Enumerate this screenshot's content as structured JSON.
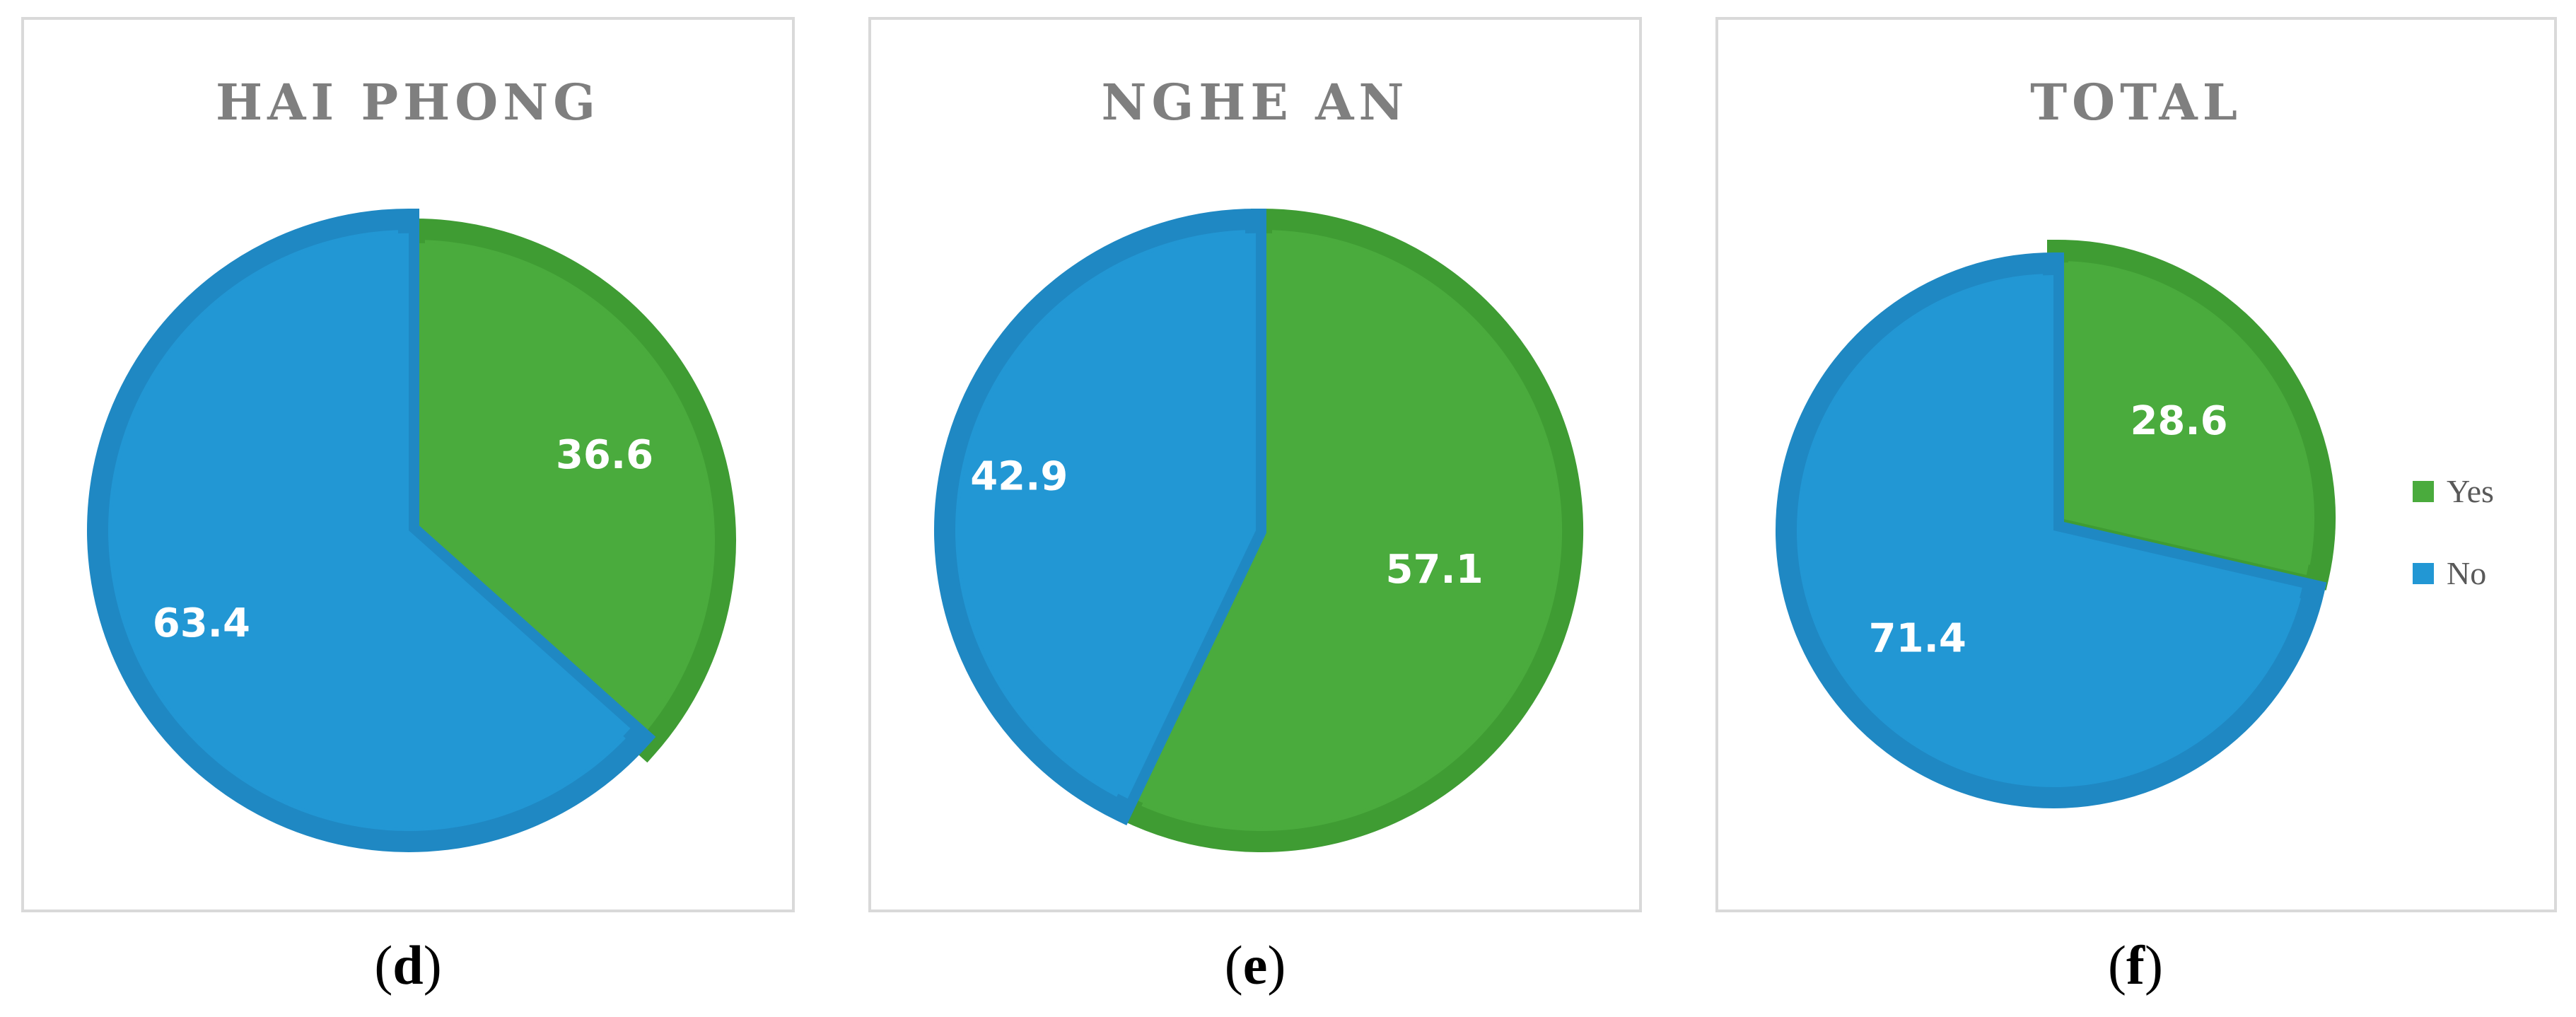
{
  "chart_data": [
    {
      "type": "pie",
      "title": "HAI PHONG",
      "caption": "d",
      "slices": [
        {
          "label": "Yes",
          "value": 36.6,
          "display": "36.6"
        },
        {
          "label": "No",
          "value": 63.4,
          "display": "63.4"
        }
      ]
    },
    {
      "type": "pie",
      "title": "NGHE AN",
      "caption": "e",
      "slices": [
        {
          "label": "Yes",
          "value": 57.1,
          "display": "57.1"
        },
        {
          "label": "No",
          "value": 42.9,
          "display": "42.9"
        }
      ]
    },
    {
      "type": "pie",
      "title": "TOTAL",
      "caption": "f",
      "slices": [
        {
          "label": "Yes",
          "value": 28.6,
          "display": "28.6"
        },
        {
          "label": "No",
          "value": 71.4,
          "display": "71.4"
        }
      ],
      "legend": {
        "position": "right",
        "entries": [
          {
            "label": "Yes",
            "color": "#4aab3d"
          },
          {
            "label": "No",
            "color": "#2297d4"
          }
        ]
      }
    }
  ],
  "colors": {
    "yes_fill": "#4aab3d",
    "yes_edge": "#3f9c33",
    "no_fill": "#2297d4",
    "no_edge": "#1f88c3"
  }
}
